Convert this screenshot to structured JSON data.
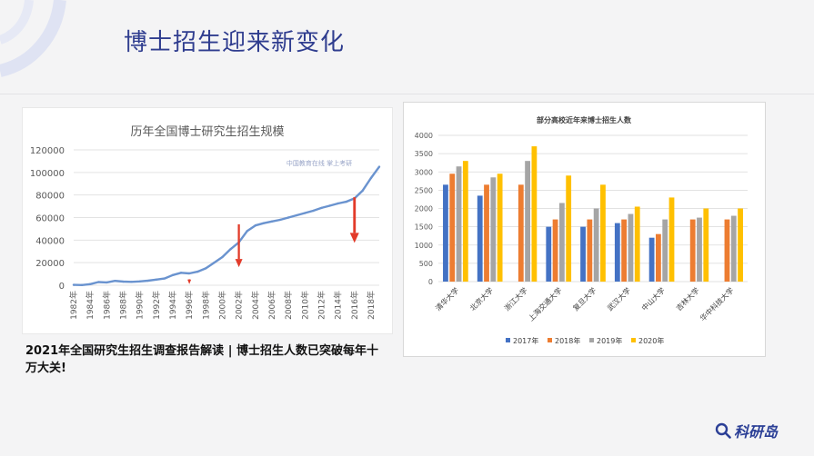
{
  "slide": {
    "title": "博士招生迎来新变化",
    "caption": "2021年全国研究生招生调查报告解读 | 博士招生人数已突破每年十万大关!",
    "brand": "科研岛",
    "accent_color": "#2f3d8f"
  },
  "chart_data": [
    {
      "type": "line",
      "title": "历年全国博士研究生招生规模",
      "watermark": "中国教育在线 掌上考研",
      "x": [
        1982,
        1983,
        1984,
        1985,
        1986,
        1987,
        1988,
        1989,
        1990,
        1991,
        1992,
        1993,
        1994,
        1995,
        1996,
        1997,
        1998,
        1999,
        2000,
        2001,
        2002,
        2003,
        2004,
        2005,
        2006,
        2007,
        2008,
        2009,
        2010,
        2011,
        2012,
        2013,
        2014,
        2015,
        2016,
        2017,
        2018,
        2019
      ],
      "y": [
        300,
        200,
        1000,
        2800,
        2500,
        3900,
        3200,
        3000,
        3400,
        4000,
        5000,
        6000,
        9000,
        11000,
        10500,
        12000,
        15000,
        20000,
        25000,
        32000,
        38000,
        48000,
        53000,
        55000,
        56500,
        58000,
        60000,
        62000,
        64000,
        66000,
        68500,
        70500,
        72500,
        74000,
        77000,
        84000,
        95000,
        105000
      ],
      "xticks": [
        "1982年",
        "1984年",
        "1986年",
        "1988年",
        "1990年",
        "1992年",
        "1994年",
        "1996年",
        "1998年",
        "2000年",
        "2002年",
        "2004年",
        "2006年",
        "2008年",
        "2010年",
        "2012年",
        "2014年",
        "2016年",
        "2018年"
      ],
      "yticks": [
        "0",
        "20000",
        "40000",
        "60000",
        "80000",
        "100000",
        "120000"
      ],
      "ylim": [
        0,
        120000
      ],
      "color": "#6a93cf",
      "arrows": [
        1996,
        2002,
        2016
      ],
      "arrow_color": "#e23b2a",
      "grid": true
    },
    {
      "type": "bar",
      "title": "部分高校近年来博士招生人数",
      "categories": [
        "清华大学",
        "北京大学",
        "浙江大学",
        "上海交通大学",
        "复旦大学",
        "武汉大学",
        "中山大学",
        "吉林大学",
        "华中科技大学"
      ],
      "series": [
        {
          "name": "2017年",
          "color": "#4472c4",
          "values": [
            2650,
            2350,
            null,
            1500,
            1500,
            1600,
            1200,
            null,
            null
          ]
        },
        {
          "name": "2018年",
          "color": "#ed7d31",
          "values": [
            2950,
            2650,
            2650,
            1700,
            1700,
            1700,
            1300,
            1700,
            1700
          ]
        },
        {
          "name": "2019年",
          "color": "#a5a5a5",
          "values": [
            3150,
            2850,
            3300,
            2150,
            2000,
            1850,
            1700,
            1750,
            1800
          ]
        },
        {
          "name": "2020年",
          "color": "#ffc000",
          "values": [
            3300,
            2950,
            3700,
            2900,
            2650,
            2050,
            2300,
            2000,
            2000
          ]
        }
      ],
      "yticks": [
        "0",
        "500",
        "1000",
        "1500",
        "2000",
        "2500",
        "3000",
        "3500",
        "4000"
      ],
      "ylim": [
        0,
        4000
      ],
      "legend": "bottom",
      "grid": true
    }
  ]
}
